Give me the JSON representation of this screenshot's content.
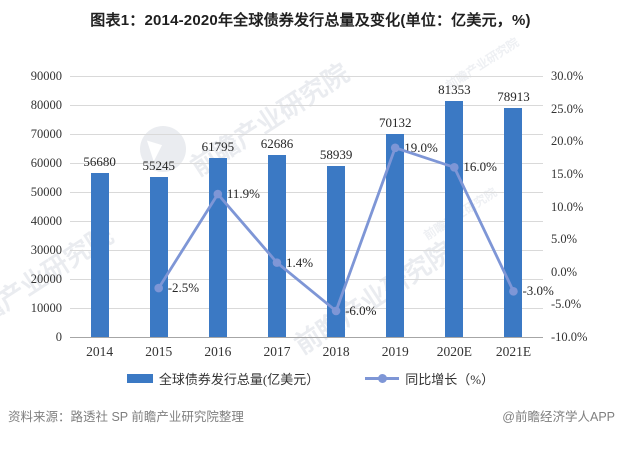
{
  "title": "图表1：2014-2020年全球债券发行总量及变化(单位：亿美元，%)",
  "chart_data": {
    "type": "bar",
    "subtype": "bar+line combo, dual axis",
    "categories": [
      "2014",
      "2015",
      "2016",
      "2017",
      "2018",
      "2019",
      "2020E",
      "2021E"
    ],
    "series": [
      {
        "name": "全球债券发行总量(亿美元）",
        "type": "bar",
        "axis": "left",
        "values": [
          56680,
          55245,
          61795,
          62686,
          58939,
          70132,
          81353,
          78913
        ],
        "labels": [
          "56680",
          "55245",
          "61795",
          "62686",
          "58939",
          "70132",
          "81353",
          "78913"
        ],
        "color": "#3b79c4"
      },
      {
        "name": "同比增长（%）",
        "type": "line",
        "axis": "right",
        "values": [
          null,
          -2.5,
          11.9,
          1.4,
          -6.0,
          19.0,
          16.0,
          -3.0
        ],
        "labels": [
          "",
          "-2.5%",
          "11.9%",
          "1.4%",
          "-6.0%",
          "19.0%",
          "16.0%",
          "-3.0%"
        ],
        "color": "#7e96d6"
      }
    ],
    "left_axis": {
      "min": 0,
      "max": 90000,
      "step": 10000,
      "ticks": [
        "90000",
        "80000",
        "70000",
        "60000",
        "50000",
        "40000",
        "30000",
        "20000",
        "10000",
        "0"
      ]
    },
    "right_axis": {
      "min": -10,
      "max": 30,
      "step": 5,
      "ticks": [
        "30.0%",
        "25.0%",
        "20.0%",
        "15.0%",
        "10.0%",
        "5.0%",
        "0.0%",
        "-5.0%",
        "-10.0%"
      ]
    },
    "grid": true,
    "legend_position": "bottom",
    "grid_color": "#d9d9d9",
    "axis_line_color": "#a6a6a6"
  },
  "footer": {
    "source": "资料来源：路透社 SP 前瞻产业研究院整理",
    "credit": "@前瞻经济学人APP"
  },
  "watermark": {
    "text": "前瞻产业研究院",
    "logo": "qianzhan-bird-logo"
  }
}
